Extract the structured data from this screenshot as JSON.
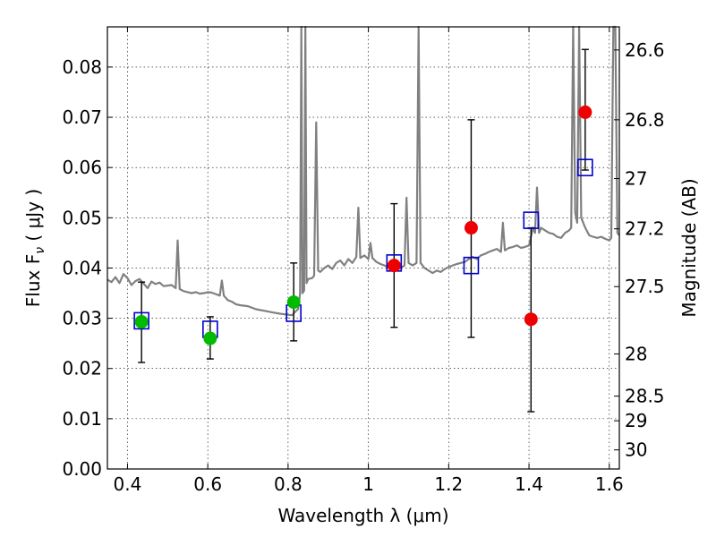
{
  "chart_data": {
    "type": "scatter",
    "title": "",
    "xlabel": "Wavelength  λ (μm)",
    "ylabel": "Flux  F",
    "ylabel_subscript": "ν",
    "ylabel_units": "  ( μJy )",
    "y2label": "Magnitude (AB)",
    "xlim": [
      0.35,
      1.625
    ],
    "ylim": [
      0.0,
      0.088
    ],
    "xticks": [
      0.4,
      0.6,
      0.8,
      1.0,
      1.2,
      1.4,
      1.6
    ],
    "xticklabels": [
      "0.4",
      "0.6",
      "0.8",
      "1",
      "1.2",
      "1.4",
      "1.6"
    ],
    "yticks": [
      0.0,
      0.01,
      0.02,
      0.03,
      0.04,
      0.05,
      0.06,
      0.07,
      0.08
    ],
    "yticklabels": [
      "0.00",
      "0.01",
      "0.02",
      "0.03",
      "0.04",
      "0.05",
      "0.06",
      "0.07",
      "0.08"
    ],
    "y2ticks": [
      {
        "label": "26.6",
        "flux": 0.0834
      },
      {
        "label": "26.8",
        "flux": 0.0695
      },
      {
        "label": "27",
        "flux": 0.0578
      },
      {
        "label": "27.2",
        "flux": 0.0478
      },
      {
        "label": "27.5",
        "flux": 0.0363
      },
      {
        "label": "28",
        "flux": 0.0229
      },
      {
        "label": "28.5",
        "flux": 0.0145
      },
      {
        "label": "29",
        "flux": 0.0096
      },
      {
        "label": "30",
        "flux": 0.0038
      }
    ],
    "grid": true,
    "colors": {
      "spectrum": "#808080",
      "model": "#0000cc",
      "optical": "#00bb00",
      "nir": "#ee0000",
      "errorbar": "#000000"
    },
    "spectrum": [
      [
        0.35,
        0.0377
      ],
      [
        0.36,
        0.0372
      ],
      [
        0.37,
        0.0382
      ],
      [
        0.38,
        0.037
      ],
      [
        0.39,
        0.0388
      ],
      [
        0.4,
        0.038
      ],
      [
        0.41,
        0.0366
      ],
      [
        0.42,
        0.0374
      ],
      [
        0.43,
        0.0378
      ],
      [
        0.44,
        0.0369
      ],
      [
        0.45,
        0.036
      ],
      [
        0.46,
        0.0373
      ],
      [
        0.47,
        0.0368
      ],
      [
        0.48,
        0.0371
      ],
      [
        0.49,
        0.0364
      ],
      [
        0.5,
        0.0365
      ],
      [
        0.51,
        0.0366
      ],
      [
        0.52,
        0.036
      ],
      [
        0.525,
        0.0455
      ],
      [
        0.53,
        0.0358
      ],
      [
        0.54,
        0.0354
      ],
      [
        0.55,
        0.0352
      ],
      [
        0.56,
        0.035
      ],
      [
        0.57,
        0.0352
      ],
      [
        0.58,
        0.0349
      ],
      [
        0.59,
        0.035
      ],
      [
        0.6,
        0.0352
      ],
      [
        0.61,
        0.0351
      ],
      [
        0.62,
        0.0348
      ],
      [
        0.63,
        0.0345
      ],
      [
        0.635,
        0.0375
      ],
      [
        0.64,
        0.0345
      ],
      [
        0.65,
        0.0336
      ],
      [
        0.66,
        0.0333
      ],
      [
        0.67,
        0.0328
      ],
      [
        0.68,
        0.0326
      ],
      [
        0.7,
        0.0324
      ],
      [
        0.72,
        0.0318
      ],
      [
        0.74,
        0.0315
      ],
      [
        0.76,
        0.0312
      ],
      [
        0.78,
        0.0309
      ],
      [
        0.8,
        0.0307
      ],
      [
        0.81,
        0.0306
      ],
      [
        0.82,
        0.0315
      ],
      [
        0.825,
        0.0318
      ],
      [
        0.83,
        0.035
      ],
      [
        0.833,
        0.09
      ],
      [
        0.836,
        0.035
      ],
      [
        0.84,
        0.0355
      ],
      [
        0.843,
        0.09
      ],
      [
        0.846,
        0.037
      ],
      [
        0.85,
        0.0378
      ],
      [
        0.86,
        0.038
      ],
      [
        0.865,
        0.0385
      ],
      [
        0.87,
        0.069
      ],
      [
        0.875,
        0.0395
      ],
      [
        0.88,
        0.0392
      ],
      [
        0.89,
        0.04
      ],
      [
        0.9,
        0.0405
      ],
      [
        0.91,
        0.0398
      ],
      [
        0.92,
        0.041
      ],
      [
        0.93,
        0.0415
      ],
      [
        0.94,
        0.0405
      ],
      [
        0.95,
        0.0418
      ],
      [
        0.96,
        0.041
      ],
      [
        0.97,
        0.0422
      ],
      [
        0.975,
        0.052
      ],
      [
        0.98,
        0.042
      ],
      [
        0.99,
        0.0425
      ],
      [
        1.0,
        0.0418
      ],
      [
        1.005,
        0.045
      ],
      [
        1.01,
        0.042
      ],
      [
        1.02,
        0.0412
      ],
      [
        1.03,
        0.0408
      ],
      [
        1.04,
        0.0405
      ],
      [
        1.05,
        0.0402
      ],
      [
        1.06,
        0.04
      ],
      [
        1.07,
        0.0398
      ],
      [
        1.08,
        0.04
      ],
      [
        1.09,
        0.0405
      ],
      [
        1.095,
        0.054
      ],
      [
        1.1,
        0.041
      ],
      [
        1.11,
        0.0405
      ],
      [
        1.12,
        0.041
      ],
      [
        1.125,
        0.09
      ],
      [
        1.13,
        0.041
      ],
      [
        1.14,
        0.04
      ],
      [
        1.15,
        0.0395
      ],
      [
        1.16,
        0.039
      ],
      [
        1.17,
        0.0395
      ],
      [
        1.18,
        0.0392
      ],
      [
        1.19,
        0.0398
      ],
      [
        1.2,
        0.0402
      ],
      [
        1.21,
        0.0405
      ],
      [
        1.22,
        0.0408
      ],
      [
        1.23,
        0.041
      ],
      [
        1.24,
        0.0412
      ],
      [
        1.25,
        0.0418
      ],
      [
        1.26,
        0.0422
      ],
      [
        1.27,
        0.0418
      ],
      [
        1.28,
        0.0425
      ],
      [
        1.29,
        0.0428
      ],
      [
        1.3,
        0.0432
      ],
      [
        1.31,
        0.0435
      ],
      [
        1.32,
        0.0438
      ],
      [
        1.33,
        0.0432
      ],
      [
        1.335,
        0.049
      ],
      [
        1.34,
        0.0435
      ],
      [
        1.35,
        0.044
      ],
      [
        1.36,
        0.0442
      ],
      [
        1.37,
        0.0445
      ],
      [
        1.38,
        0.044
      ],
      [
        1.39,
        0.0442
      ],
      [
        1.4,
        0.0445
      ],
      [
        1.41,
        0.048
      ],
      [
        1.415,
        0.047
      ],
      [
        1.42,
        0.056
      ],
      [
        1.425,
        0.047
      ],
      [
        1.43,
        0.048
      ],
      [
        1.44,
        0.0475
      ],
      [
        1.45,
        0.047
      ],
      [
        1.46,
        0.0468
      ],
      [
        1.47,
        0.0462
      ],
      [
        1.48,
        0.046
      ],
      [
        1.49,
        0.047
      ],
      [
        1.5,
        0.0475
      ],
      [
        1.505,
        0.048
      ],
      [
        1.51,
        0.09
      ],
      [
        1.515,
        0.051
      ],
      [
        1.52,
        0.049
      ],
      [
        1.525,
        0.09
      ],
      [
        1.53,
        0.05
      ],
      [
        1.54,
        0.048
      ],
      [
        1.55,
        0.0465
      ],
      [
        1.56,
        0.0462
      ],
      [
        1.57,
        0.046
      ],
      [
        1.58,
        0.0462
      ],
      [
        1.59,
        0.0458
      ],
      [
        1.6,
        0.0455
      ],
      [
        1.605,
        0.046
      ],
      [
        1.61,
        0.09
      ],
      [
        1.615,
        0.09
      ],
      [
        1.62,
        0.047
      ],
      [
        1.625,
        0.0465
      ]
    ],
    "model_points": [
      {
        "x": 0.435,
        "y": 0.0295
      },
      {
        "x": 0.606,
        "y": 0.0278
      },
      {
        "x": 0.814,
        "y": 0.031
      },
      {
        "x": 1.064,
        "y": 0.041
      },
      {
        "x": 1.256,
        "y": 0.0405
      },
      {
        "x": 1.405,
        "y": 0.0495
      },
      {
        "x": 1.54,
        "y": 0.06
      }
    ],
    "observed_optical": [
      {
        "x": 0.435,
        "y": 0.0293,
        "ylo": 0.0212,
        "yhi": 0.0372
      },
      {
        "x": 0.606,
        "y": 0.026,
        "ylo": 0.0219,
        "yhi": 0.0303
      },
      {
        "x": 0.814,
        "y": 0.0332,
        "ylo": 0.0255,
        "yhi": 0.041
      }
    ],
    "observed_nir": [
      {
        "x": 1.064,
        "y": 0.0405,
        "ylo": 0.0282,
        "yhi": 0.0528
      },
      {
        "x": 1.256,
        "y": 0.048,
        "ylo": 0.0262,
        "yhi": 0.0695
      },
      {
        "x": 1.405,
        "y": 0.0298,
        "ylo": 0.0114,
        "yhi": 0.048
      },
      {
        "x": 1.54,
        "y": 0.071,
        "ylo": 0.0595,
        "yhi": 0.0835
      }
    ]
  }
}
